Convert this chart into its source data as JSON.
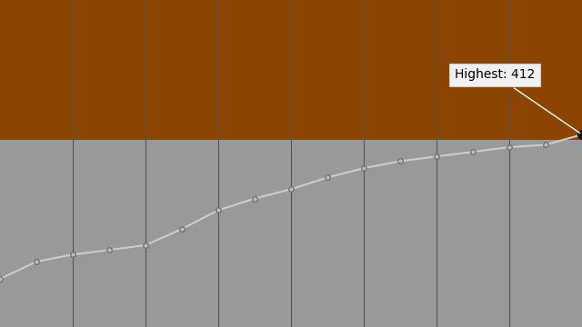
{
  "rating_values": [
    103,
    140,
    155,
    165,
    175,
    210,
    250,
    275,
    295,
    320,
    340,
    355,
    365,
    375,
    385,
    390,
    412
  ],
  "highest": 412,
  "brown_color": "#8B4500",
  "gray_color": "#999999",
  "line_color": "#cccccc",
  "marker_color": "#bbbbbb",
  "marker_edge_color": "#666666",
  "bg_color": "#1a1a1a",
  "annotation_text": "Highest: 412",
  "annotation_box_color": "#f0f0f0",
  "ylim_min": 0,
  "ylim_max": 700,
  "brown_threshold": 400,
  "grid_color": "#555555",
  "n_grid_lines": 7,
  "annotation_fontsize": 10
}
